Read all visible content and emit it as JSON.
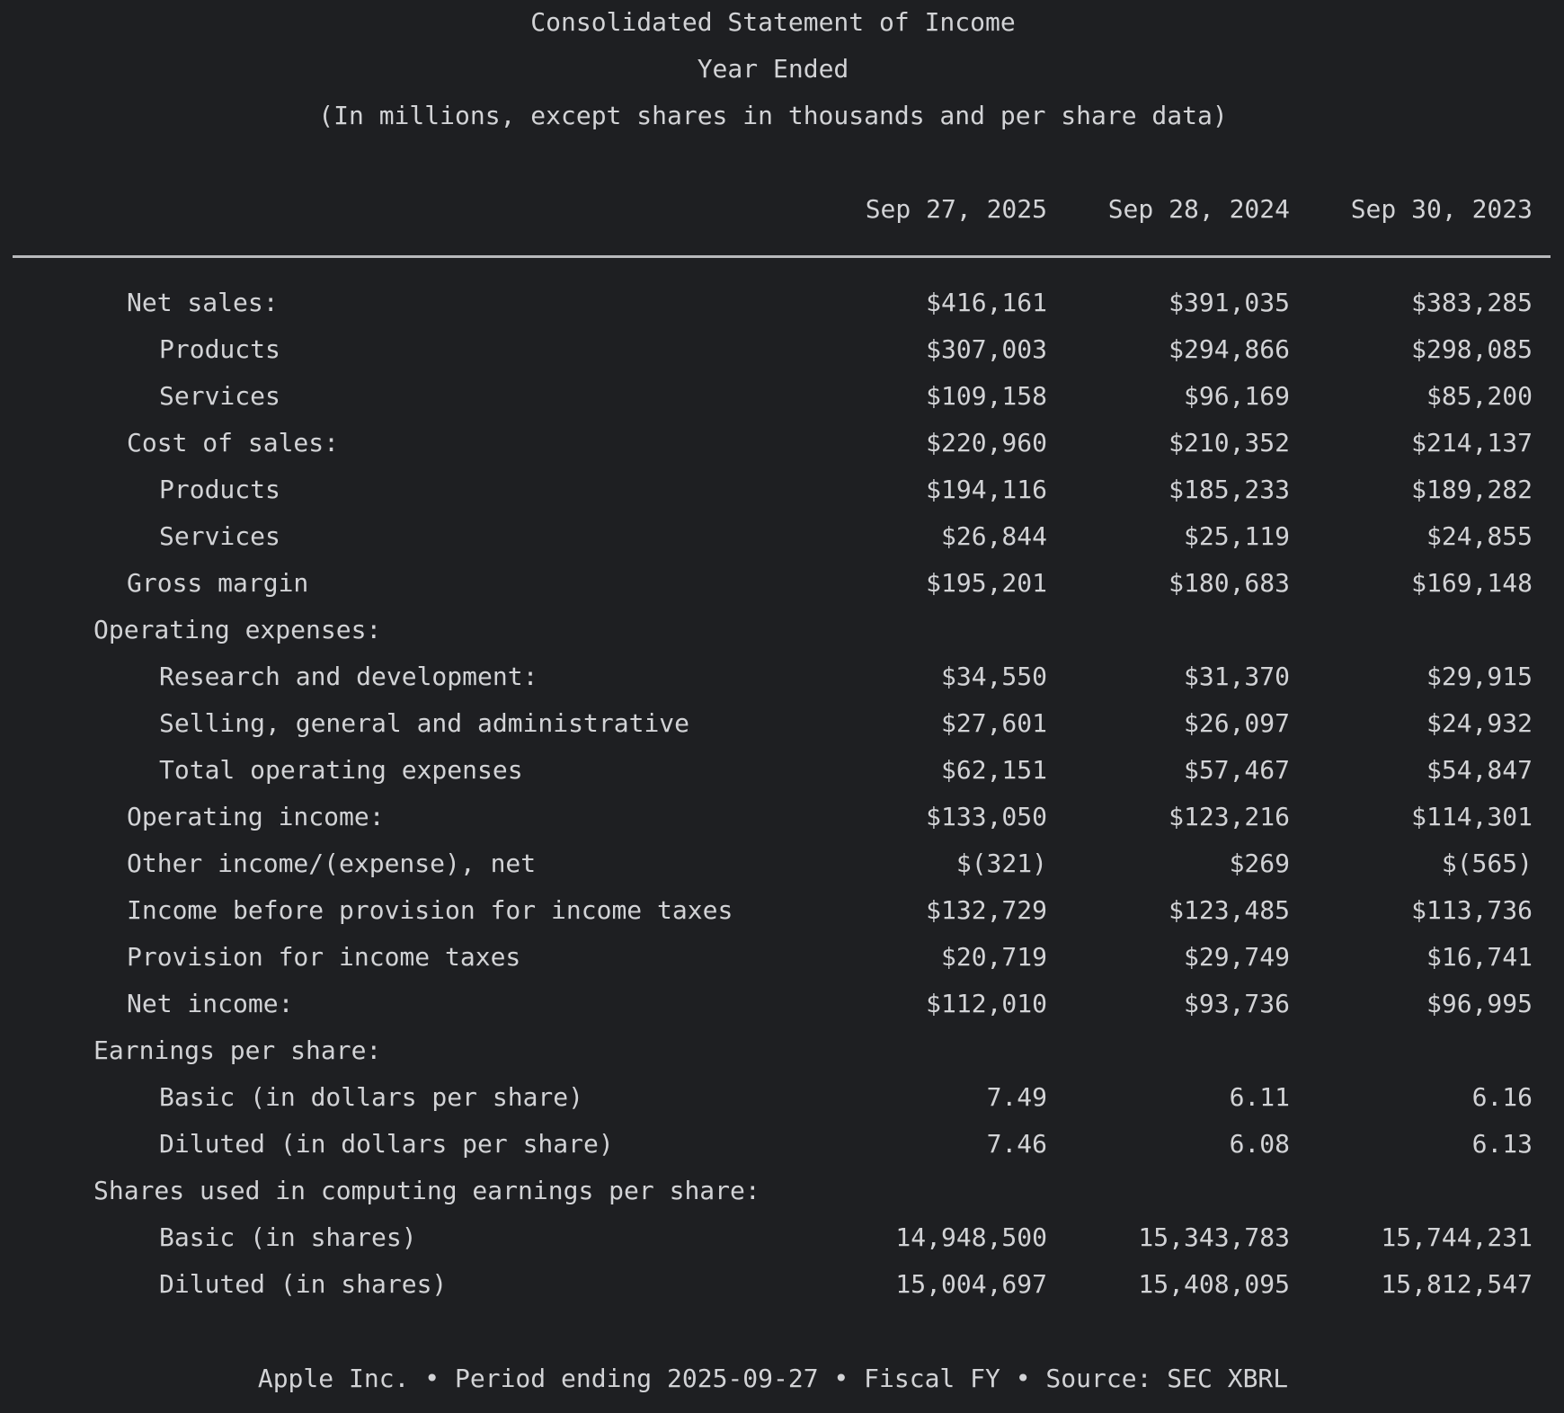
{
  "title": "Consolidated Statement of Income",
  "subtitle": "Year Ended",
  "units_note": "(In millions, except shares in thousands and per share data)",
  "columns": [
    "Sep 27, 2025",
    "Sep 28, 2024",
    "Sep 30, 2023"
  ],
  "rows": [
    {
      "label": "Net sales:",
      "level": 1,
      "values": [
        "$416,161",
        "$391,035",
        "$383,285"
      ]
    },
    {
      "label": "Products",
      "level": 2,
      "values": [
        "$307,003",
        "$294,866",
        "$298,085"
      ]
    },
    {
      "label": "Services",
      "level": 2,
      "values": [
        "$109,158",
        "$96,169",
        "$85,200"
      ]
    },
    {
      "label": "Cost of sales:",
      "level": 1,
      "values": [
        "$220,960",
        "$210,352",
        "$214,137"
      ]
    },
    {
      "label": "Products",
      "level": 2,
      "values": [
        "$194,116",
        "$185,233",
        "$189,282"
      ]
    },
    {
      "label": "Services",
      "level": 2,
      "values": [
        "$26,844",
        "$25,119",
        "$24,855"
      ]
    },
    {
      "label": "Gross margin",
      "level": 1,
      "values": [
        "$195,201",
        "$180,683",
        "$169,148"
      ]
    },
    {
      "label": "Operating expenses:",
      "level": 0,
      "values": [
        "",
        "",
        ""
      ]
    },
    {
      "label": "Research and development:",
      "level": 2,
      "values": [
        "$34,550",
        "$31,370",
        "$29,915"
      ]
    },
    {
      "label": "Selling, general and administrative",
      "level": 2,
      "values": [
        "$27,601",
        "$26,097",
        "$24,932"
      ]
    },
    {
      "label": "Total operating expenses",
      "level": 2,
      "values": [
        "$62,151",
        "$57,467",
        "$54,847"
      ]
    },
    {
      "label": "Operating income:",
      "level": 1,
      "values": [
        "$133,050",
        "$123,216",
        "$114,301"
      ]
    },
    {
      "label": "Other income/(expense), net",
      "level": 1,
      "values": [
        "$(321)",
        "$269",
        "$(565)"
      ]
    },
    {
      "label": "Income before provision for income taxes",
      "level": 1,
      "values": [
        "$132,729",
        "$123,485",
        "$113,736"
      ]
    },
    {
      "label": "Provision for income taxes",
      "level": 1,
      "values": [
        "$20,719",
        "$29,749",
        "$16,741"
      ]
    },
    {
      "label": "Net income:",
      "level": 1,
      "values": [
        "$112,010",
        "$93,736",
        "$96,995"
      ]
    },
    {
      "label": "Earnings per share:",
      "level": 0,
      "values": [
        "",
        "",
        ""
      ]
    },
    {
      "label": "Basic (in dollars per share)",
      "level": 2,
      "values": [
        "7.49",
        "6.11",
        "6.16"
      ]
    },
    {
      "label": "Diluted (in dollars per share)",
      "level": 2,
      "values": [
        "7.46",
        "6.08",
        "6.13"
      ]
    },
    {
      "label": "Shares used in computing earnings per share:",
      "level": 0,
      "values": [
        "",
        "",
        ""
      ]
    },
    {
      "label": "Basic (in shares)",
      "level": 2,
      "values": [
        "14,948,500",
        "15,343,783",
        "15,744,231"
      ]
    },
    {
      "label": "Diluted (in shares)",
      "level": 2,
      "values": [
        "15,004,697",
        "15,408,095",
        "15,812,547"
      ]
    }
  ],
  "footer": "Apple Inc. • Period ending 2025-09-27 • Fiscal FY • Source: SEC XBRL"
}
